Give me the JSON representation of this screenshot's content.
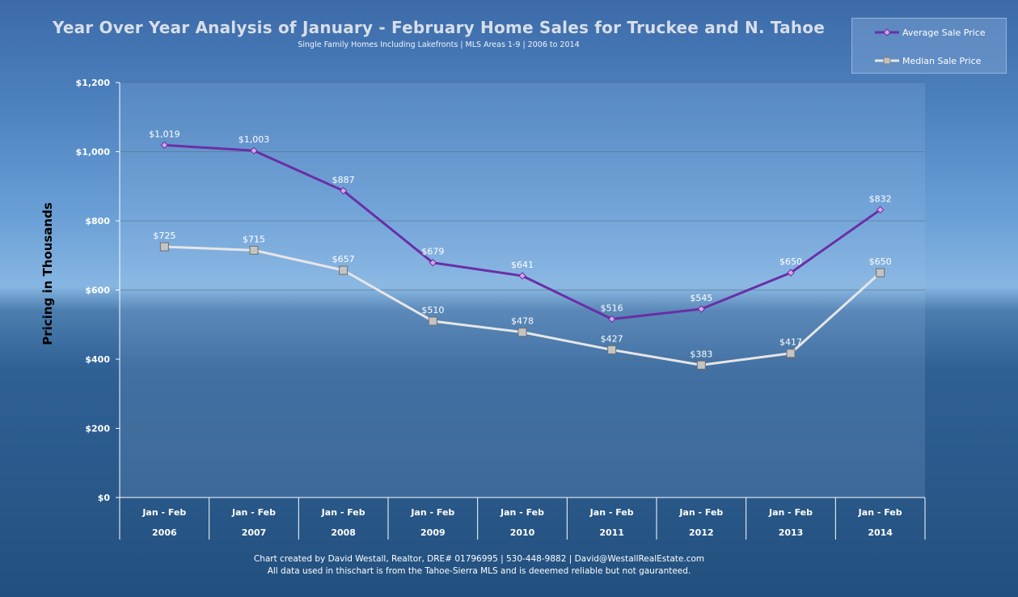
{
  "chart_data": {
    "type": "line",
    "title": "Year Over Year Analysis of January - February Home Sales for Truckee and N. Tahoe",
    "subtitle": "Single Family Homes Including Lakefronts | MLS Areas 1-9 | 2006 to 2014",
    "ylabel": "Pricing in Thousands",
    "xlabel": "",
    "ylim": [
      0,
      1200
    ],
    "yticks": [
      0,
      200,
      400,
      600,
      800,
      1000,
      1200
    ],
    "ytick_labels": [
      "$0",
      "$200",
      "$400",
      "$600",
      "$800",
      "$1,000",
      "$1,200"
    ],
    "categories": [
      {
        "period": "Jan - Feb",
        "year": "2006"
      },
      {
        "period": "Jan - Feb",
        "year": "2007"
      },
      {
        "period": "Jan - Feb",
        "year": "2008"
      },
      {
        "period": "Jan - Feb",
        "year": "2009"
      },
      {
        "period": "Jan - Feb",
        "year": "2010"
      },
      {
        "period": "Jan - Feb",
        "year": "2011"
      },
      {
        "period": "Jan - Feb",
        "year": "2012"
      },
      {
        "period": "Jan - Feb",
        "year": "2013"
      },
      {
        "period": "Jan - Feb",
        "year": "2014"
      }
    ],
    "series": [
      {
        "name": "Average Sale Price",
        "color": "#6a2fa6",
        "marker": "diamond",
        "values": [
          1019,
          1003,
          887,
          679,
          641,
          516,
          545,
          650,
          832
        ],
        "labels": [
          "$1,019",
          "$1,003",
          "$887",
          "$679",
          "$641",
          "$516",
          "$545",
          "$650",
          "$832"
        ]
      },
      {
        "name": "Median Sale Price",
        "color": "#e6e6e6",
        "marker": "square",
        "values": [
          725,
          715,
          657,
          510,
          478,
          427,
          383,
          417,
          650
        ],
        "labels": [
          "$725",
          "$715",
          "$657",
          "$510",
          "$478",
          "$427",
          "$383",
          "$417",
          "$650"
        ]
      }
    ],
    "grid": true,
    "legend_position": "top-right"
  },
  "footer": {
    "line1": "Chart created by David Westall, Realtor, DRE# 01796995 | 530-448-9882 | David@WestallRealEstate.com",
    "line2": "All data used in thischart is from the Tahoe-Sierra MLS and is deeemed reliable but not gauranteed."
  }
}
